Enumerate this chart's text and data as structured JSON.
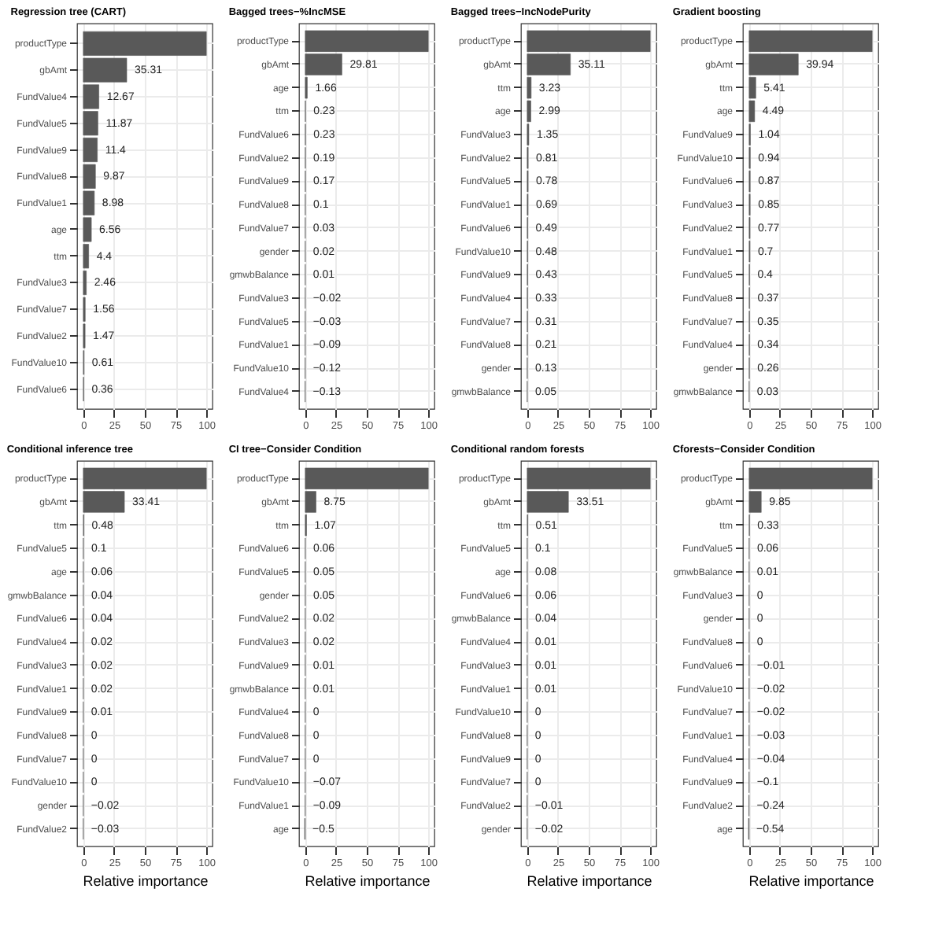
{
  "chart_data": [
    {
      "type": "bar",
      "orientation": "horizontal",
      "title": "Regression tree (CART)",
      "color": "#595959",
      "grid": true,
      "xlim": [
        -5,
        105
      ],
      "xticks": [
        0,
        25,
        50,
        75,
        100
      ],
      "categories": [
        "productType",
        "gbAmt",
        "FundValue4",
        "FundValue5",
        "FundValue9",
        "FundValue8",
        "FundValue1",
        "age",
        "ttm",
        "FundValue3",
        "FundValue7",
        "FundValue2",
        "FundValue10",
        "FundValue6"
      ],
      "values": [
        100,
        35.31,
        12.67,
        11.87,
        11.4,
        9.87,
        8.98,
        6.56,
        4.4,
        2.46,
        1.56,
        1.47,
        0.61,
        0.36
      ],
      "value_labels": [
        null,
        "35.31",
        "12.67",
        "11.87",
        "11.4",
        "9.87",
        "8.98",
        "6.56",
        "4.4",
        "2.46",
        "1.56",
        "1.47",
        "0.61",
        "0.36"
      ]
    },
    {
      "type": "bar",
      "orientation": "horizontal",
      "title": "Bagged trees−%IncMSE",
      "color": "#595959",
      "grid": true,
      "xlim": [
        -5,
        105
      ],
      "xticks": [
        0,
        25,
        50,
        75,
        100
      ],
      "categories": [
        "productType",
        "gbAmt",
        "age",
        "ttm",
        "FundValue6",
        "FundValue2",
        "FundValue9",
        "FundValue8",
        "FundValue7",
        "gender",
        "gmwbBalance",
        "FundValue3",
        "FundValue5",
        "FundValue1",
        "FundValue10",
        "FundValue4"
      ],
      "values": [
        100,
        29.81,
        1.66,
        0.23,
        0.23,
        0.19,
        0.17,
        0.1,
        0.03,
        0.02,
        0.01,
        -0.02,
        -0.03,
        -0.09,
        -0.12,
        -0.13
      ],
      "value_labels": [
        null,
        "29.81",
        "1.66",
        "0.23",
        "0.23",
        "0.19",
        "0.17",
        "0.1",
        "0.03",
        "0.02",
        "0.01",
        "−0.02",
        "−0.03",
        "−0.09",
        "−0.12",
        "−0.13"
      ]
    },
    {
      "type": "bar",
      "orientation": "horizontal",
      "title": "Bagged trees−IncNodePurity",
      "color": "#595959",
      "grid": true,
      "xlim": [
        -5,
        105
      ],
      "xticks": [
        0,
        25,
        50,
        75,
        100
      ],
      "categories": [
        "productType",
        "gbAmt",
        "ttm",
        "age",
        "FundValue3",
        "FundValue2",
        "FundValue5",
        "FundValue1",
        "FundValue6",
        "FundValue10",
        "FundValue9",
        "FundValue4",
        "FundValue7",
        "FundValue8",
        "gender",
        "gmwbBalance"
      ],
      "values": [
        100,
        35.11,
        3.23,
        2.99,
        1.35,
        0.81,
        0.78,
        0.69,
        0.49,
        0.48,
        0.43,
        0.33,
        0.31,
        0.21,
        0.13,
        0.05
      ],
      "value_labels": [
        null,
        "35.11",
        "3.23",
        "2.99",
        "1.35",
        "0.81",
        "0.78",
        "0.69",
        "0.49",
        "0.48",
        "0.43",
        "0.33",
        "0.31",
        "0.21",
        "0.13",
        "0.05"
      ]
    },
    {
      "type": "bar",
      "orientation": "horizontal",
      "title": "Gradient boosting",
      "color": "#595959",
      "grid": true,
      "xlim": [
        -5,
        105
      ],
      "xticks": [
        0,
        25,
        50,
        75,
        100
      ],
      "categories": [
        "productType",
        "gbAmt",
        "ttm",
        "age",
        "FundValue9",
        "FundValue10",
        "FundValue6",
        "FundValue3",
        "FundValue2",
        "FundValue1",
        "FundValue5",
        "FundValue8",
        "FundValue7",
        "FundValue4",
        "gender",
        "gmwbBalance"
      ],
      "values": [
        100,
        39.94,
        5.41,
        4.49,
        1.04,
        0.94,
        0.87,
        0.85,
        0.77,
        0.7,
        0.4,
        0.37,
        0.35,
        0.34,
        0.26,
        0.03
      ],
      "value_labels": [
        null,
        "39.94",
        "5.41",
        "4.49",
        "1.04",
        "0.94",
        "0.87",
        "0.85",
        "0.77",
        "0.7",
        "0.4",
        "0.37",
        "0.35",
        "0.34",
        "0.26",
        "0.03"
      ]
    },
    {
      "type": "bar",
      "orientation": "horizontal",
      "title": "Conditional inference tree",
      "xlabel": "Relative importance",
      "color": "#595959",
      "grid": true,
      "xlim": [
        -5,
        105
      ],
      "xticks": [
        0,
        25,
        50,
        75,
        100
      ],
      "categories": [
        "productType",
        "gbAmt",
        "ttm",
        "FundValue5",
        "age",
        "gmwbBalance",
        "FundValue6",
        "FundValue4",
        "FundValue3",
        "FundValue1",
        "FundValue9",
        "FundValue8",
        "FundValue7",
        "FundValue10",
        "gender",
        "FundValue2"
      ],
      "values": [
        100,
        33.41,
        0.48,
        0.1,
        0.06,
        0.04,
        0.04,
        0.02,
        0.02,
        0.02,
        0.01,
        0,
        0,
        0,
        -0.02,
        -0.03
      ],
      "value_labels": [
        null,
        "33.41",
        "0.48",
        "0.1",
        "0.06",
        "0.04",
        "0.04",
        "0.02",
        "0.02",
        "0.02",
        "0.01",
        "0",
        "0",
        "0",
        "−0.02",
        "−0.03"
      ]
    },
    {
      "type": "bar",
      "orientation": "horizontal",
      "title": "CI tree−Consider Condition",
      "xlabel": "Relative importance",
      "color": "#595959",
      "grid": true,
      "xlim": [
        -5,
        105
      ],
      "xticks": [
        0,
        25,
        50,
        75,
        100
      ],
      "categories": [
        "productType",
        "gbAmt",
        "ttm",
        "FundValue6",
        "FundValue5",
        "gender",
        "FundValue2",
        "FundValue3",
        "FundValue9",
        "gmwbBalance",
        "FundValue4",
        "FundValue8",
        "FundValue7",
        "FundValue10",
        "FundValue1",
        "age"
      ],
      "values": [
        100,
        8.75,
        1.07,
        0.06,
        0.05,
        0.05,
        0.02,
        0.02,
        0.01,
        0.01,
        0,
        0,
        0,
        -0.07,
        -0.09,
        -0.5
      ],
      "value_labels": [
        null,
        "8.75",
        "1.07",
        "0.06",
        "0.05",
        "0.05",
        "0.02",
        "0.02",
        "0.01",
        "0.01",
        "0",
        "0",
        "0",
        "−0.07",
        "−0.09",
        "−0.5"
      ]
    },
    {
      "type": "bar",
      "orientation": "horizontal",
      "title": "Conditional random forests",
      "xlabel": "Relative importance",
      "color": "#595959",
      "grid": true,
      "xlim": [
        -5,
        105
      ],
      "xticks": [
        0,
        25,
        50,
        75,
        100
      ],
      "categories": [
        "productType",
        "gbAmt",
        "ttm",
        "FundValue5",
        "age",
        "FundValue6",
        "gmwbBalance",
        "FundValue4",
        "FundValue3",
        "FundValue1",
        "FundValue10",
        "FundValue8",
        "FundValue9",
        "FundValue7",
        "FundValue2",
        "gender"
      ],
      "values": [
        100,
        33.51,
        0.51,
        0.1,
        0.08,
        0.06,
        0.04,
        0.01,
        0.01,
        0.01,
        0,
        0,
        0,
        0,
        -0.01,
        -0.02
      ],
      "value_labels": [
        null,
        "33.51",
        "0.51",
        "0.1",
        "0.08",
        "0.06",
        "0.04",
        "0.01",
        "0.01",
        "0.01",
        "0",
        "0",
        "0",
        "0",
        "−0.01",
        "−0.02"
      ]
    },
    {
      "type": "bar",
      "orientation": "horizontal",
      "title": "Cforests−Consider Condition",
      "xlabel": "Relative importance",
      "color": "#595959",
      "grid": true,
      "xlim": [
        -5,
        105
      ],
      "xticks": [
        0,
        25,
        50,
        75,
        100
      ],
      "categories": [
        "productType",
        "gbAmt",
        "ttm",
        "FundValue5",
        "gmwbBalance",
        "FundValue3",
        "gender",
        "FundValue8",
        "FundValue6",
        "FundValue10",
        "FundValue7",
        "FundValue1",
        "FundValue4",
        "FundValue9",
        "FundValue2",
        "age"
      ],
      "values": [
        100,
        9.85,
        0.33,
        0.06,
        0.01,
        0,
        0,
        0,
        -0.01,
        -0.02,
        -0.02,
        -0.03,
        -0.04,
        -0.1,
        -0.24,
        -0.54
      ],
      "value_labels": [
        null,
        "9.85",
        "0.33",
        "0.06",
        "0.01",
        "0",
        "0",
        "0",
        "−0.01",
        "−0.02",
        "−0.02",
        "−0.03",
        "−0.04",
        "−0.1",
        "−0.24",
        "−0.54"
      ]
    }
  ]
}
